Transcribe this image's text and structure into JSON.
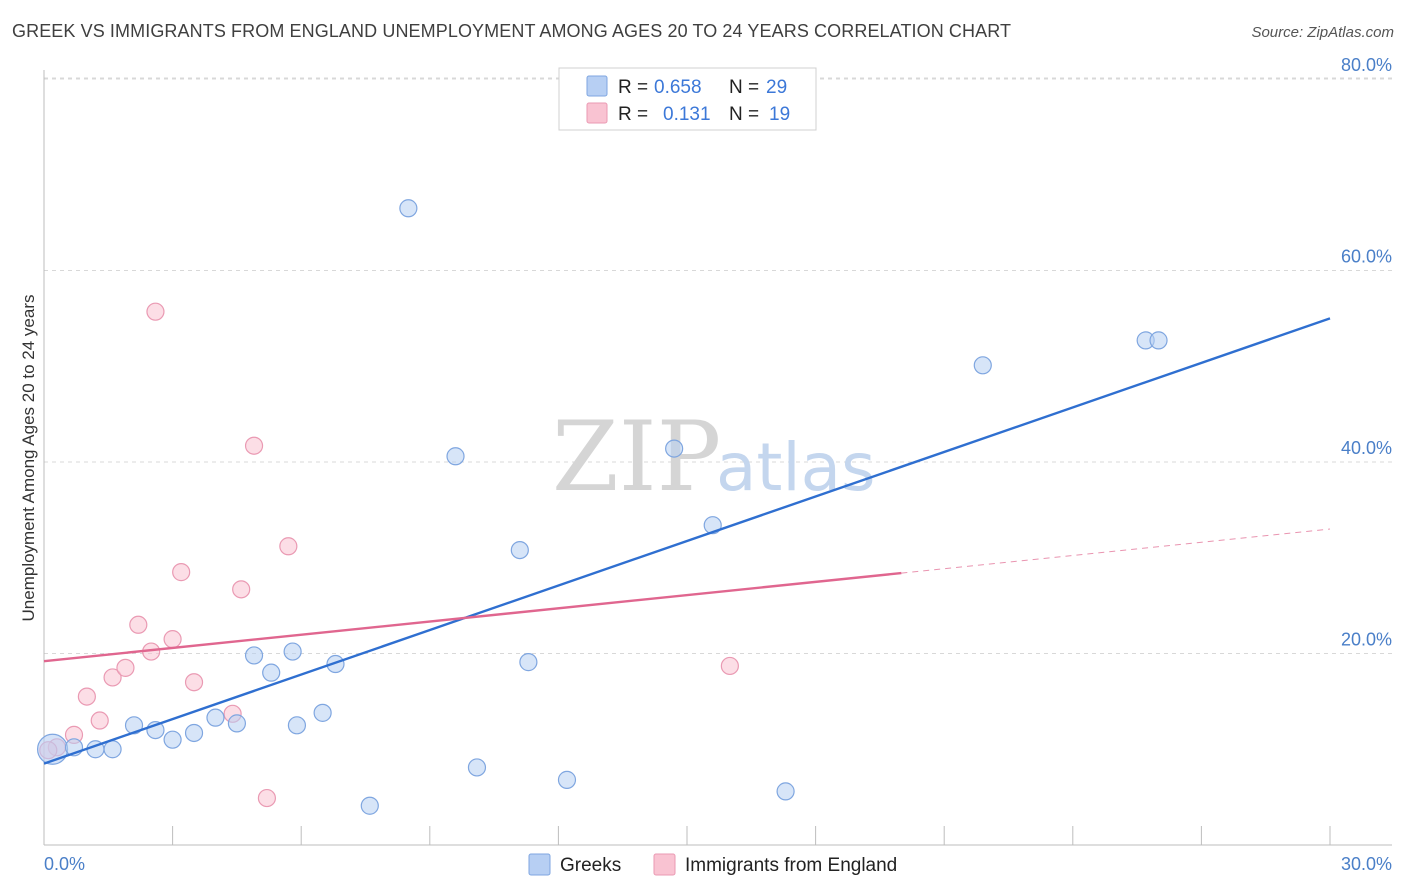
{
  "title": "GREEK VS IMMIGRANTS FROM ENGLAND UNEMPLOYMENT AMONG AGES 20 TO 24 YEARS CORRELATION CHART",
  "source": "Source: ZipAtlas.com",
  "watermark": {
    "zip": "ZIP",
    "atlas": "atlas"
  },
  "colors": {
    "blue_fill": "#b7cff3",
    "blue_stroke": "#7fa6e0",
    "blue_line": "#2f6fd0",
    "pink_fill": "#f9c3d2",
    "pink_stroke": "#ea9ab3",
    "pink_line": "#e0668f",
    "grid": "#d8d8d8",
    "tick_text": "#4a7fc8"
  },
  "legend": {
    "rows": [
      {
        "r_label": "R =",
        "r_value": "0.658",
        "n_label": "N =",
        "n_value": "29"
      },
      {
        "r_label": "R =",
        "r_value": "0.131",
        "n_label": "N =",
        "n_value": "19"
      }
    ]
  },
  "bottom_legend": {
    "series1": "Greeks",
    "series2": "Immigrants from England"
  },
  "chart_data": {
    "type": "scatter",
    "title": "GREEK VS IMMIGRANTS FROM ENGLAND UNEMPLOYMENT AMONG AGES 20 TO 24 YEARS CORRELATION CHART",
    "xlabel": "",
    "ylabel": "Unemployment Among Ages 20 to 24 years",
    "xlim": [
      0,
      30
    ],
    "ylim": [
      0,
      83
    ],
    "x_tick_labels": [
      "0.0%",
      "30.0%"
    ],
    "y_ticks": [
      20,
      40,
      60,
      80
    ],
    "y_tick_labels": [
      "20.0%",
      "40.0%",
      "60.0%",
      "80.0%"
    ],
    "series": [
      {
        "name": "Greeks",
        "r": 0.658,
        "n": 29,
        "points": [
          [
            0.2,
            10.0
          ],
          [
            0.7,
            10.2
          ],
          [
            1.2,
            10.0
          ],
          [
            1.6,
            10.0
          ],
          [
            2.1,
            12.5
          ],
          [
            2.6,
            12.0
          ],
          [
            3.0,
            11.0
          ],
          [
            3.5,
            11.7
          ],
          [
            4.0,
            13.3
          ],
          [
            4.5,
            12.7
          ],
          [
            4.9,
            19.8
          ],
          [
            5.3,
            18.0
          ],
          [
            5.9,
            12.5
          ],
          [
            5.8,
            20.2
          ],
          [
            6.5,
            13.8
          ],
          [
            6.8,
            18.9
          ],
          [
            7.6,
            4.1
          ],
          [
            8.5,
            66.5
          ],
          [
            9.6,
            40.6
          ],
          [
            10.1,
            8.1
          ],
          [
            11.1,
            30.8
          ],
          [
            11.3,
            19.1
          ],
          [
            12.2,
            6.8
          ],
          [
            14.7,
            41.4
          ],
          [
            15.6,
            33.4
          ],
          [
            17.3,
            5.6
          ],
          [
            21.9,
            50.1
          ],
          [
            25.7,
            52.7
          ],
          [
            26.0,
            52.7
          ]
        ],
        "trend": {
          "x0": 0.0,
          "y0": 8.5,
          "x1": 30.0,
          "y1": 55.0
        }
      },
      {
        "name": "Immigrants from England",
        "r": 0.131,
        "n": 19,
        "points": [
          [
            0.3,
            10.2
          ],
          [
            0.7,
            11.5
          ],
          [
            1.0,
            15.5
          ],
          [
            1.3,
            13.0
          ],
          [
            1.6,
            17.5
          ],
          [
            1.9,
            18.5
          ],
          [
            2.2,
            23.0
          ],
          [
            2.5,
            20.2
          ],
          [
            2.6,
            55.7
          ],
          [
            3.0,
            21.5
          ],
          [
            3.2,
            28.5
          ],
          [
            3.5,
            17.0
          ],
          [
            4.4,
            13.7
          ],
          [
            4.6,
            26.7
          ],
          [
            4.9,
            41.7
          ],
          [
            5.2,
            4.9
          ],
          [
            5.7,
            31.2
          ],
          [
            16.0,
            18.7
          ],
          [
            0.1,
            9.9
          ]
        ],
        "trend": {
          "x0": 0.0,
          "y0": 19.2,
          "x1": 20.0,
          "y1": 28.4
        },
        "trend_dashed": {
          "x0": 20.0,
          "y0": 28.4,
          "x1": 30.0,
          "y1": 33.0
        }
      }
    ]
  }
}
